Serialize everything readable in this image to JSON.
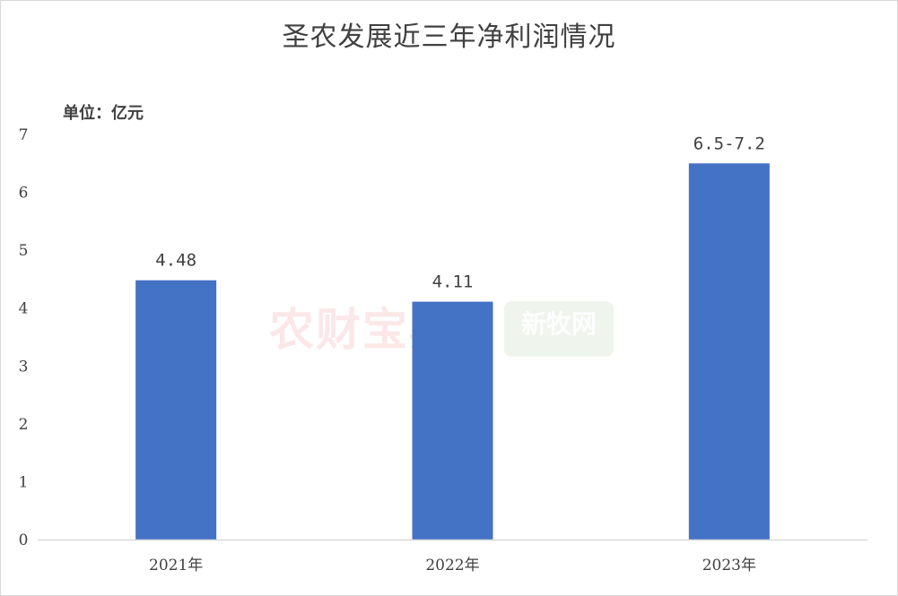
{
  "chart_data": {
    "type": "bar",
    "title": "圣农发展近三年净利润情况",
    "unit_label": "单位：亿元",
    "categories": [
      "2021年",
      "2022年",
      "2023年"
    ],
    "values": [
      4.48,
      4.11,
      6.5
    ],
    "data_labels": [
      "4.48",
      "4.11",
      "6.5-7.2"
    ],
    "ylim": [
      0,
      7
    ],
    "yticks": [
      "0",
      "1",
      "2",
      "3",
      "4",
      "5",
      "6",
      "7"
    ],
    "grid": false,
    "bar_color": "#4472c4",
    "axis_color": "#d9d9d9",
    "text_color": "#404040"
  },
  "watermarks": {
    "left": "农财宝典",
    "right": "新牧网"
  }
}
